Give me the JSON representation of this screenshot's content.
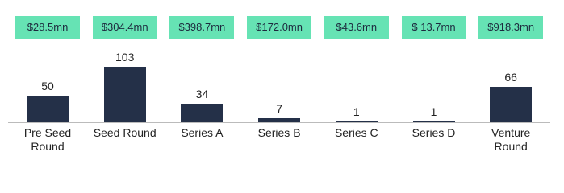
{
  "chart_data": {
    "type": "bar",
    "categories": [
      "Pre Seed Round",
      "Seed Round",
      "Series A",
      "Series B",
      "Series C",
      "Series D",
      "Venture Round"
    ],
    "values": [
      50,
      103,
      34,
      7,
      1,
      1,
      66
    ],
    "amount_labels": [
      "$28.5mn",
      "$304.4mn",
      "$398.7mn",
      "$172.0mn",
      "$43.6mn",
      "$ 13.7mn",
      "$918.3mn"
    ],
    "color": "#243048"
  }
}
